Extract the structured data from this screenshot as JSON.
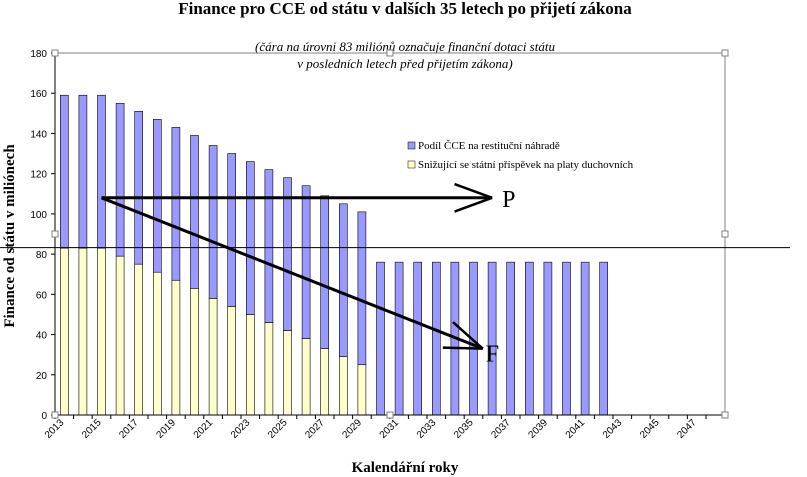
{
  "chart_data": {
    "type": "bar",
    "stacked": true,
    "title": "Finance pro CCE od státu v dalších 35 letech po přijetí zákona",
    "subtitle_lines": [
      "(čára na úrovni 83 miliónů označuje finanční dotaci státu",
      "v posledních letech před přijetím zákona)"
    ],
    "xlabel": "Kalendářní roky",
    "ylabel": "Finance od státu v miliónech",
    "ylim": [
      0,
      180
    ],
    "yticks": [
      0,
      20,
      40,
      60,
      80,
      100,
      120,
      140,
      160,
      180
    ],
    "x_tick_labels": [
      "2013",
      "2015",
      "2017",
      "2019",
      "2021",
      "2023",
      "2025",
      "2027",
      "2029",
      "2031",
      "2033",
      "2035",
      "2037",
      "2039",
      "2041",
      "2043",
      "2045",
      "2047"
    ],
    "categories": [
      2013,
      2014,
      2015,
      2016,
      2017,
      2018,
      2019,
      2020,
      2021,
      2022,
      2023,
      2024,
      2025,
      2026,
      2027,
      2028,
      2029,
      2030,
      2031,
      2032,
      2033,
      2034,
      2035,
      2036,
      2037,
      2038,
      2039,
      2040,
      2041,
      2042,
      2043,
      2044,
      2045,
      2046,
      2047,
      2048
    ],
    "series": [
      {
        "name": "Snižující se státní příspěvek na platy duchovních",
        "color": "#ffffcc",
        "values": [
          83,
          83,
          83,
          79,
          75,
          71,
          67,
          63,
          58,
          54,
          50,
          46,
          42,
          38,
          33,
          29,
          25,
          0,
          0,
          0,
          0,
          0,
          0,
          0,
          0,
          0,
          0,
          0,
          0,
          0,
          0,
          0,
          0,
          0,
          0,
          0
        ]
      },
      {
        "name": "Podíl ČCE na restituční náhradě",
        "color": "#9999ff",
        "values": [
          76,
          76,
          76,
          76,
          76,
          76,
          76,
          76,
          76,
          76,
          76,
          76,
          76,
          76,
          76,
          76,
          76,
          76,
          76,
          76,
          76,
          76,
          76,
          76,
          76,
          76,
          76,
          76,
          76,
          76,
          0,
          0,
          0,
          0,
          0,
          0
        ]
      }
    ],
    "reference_line": 83,
    "grid": false,
    "legend_position": "inside-top-right",
    "annotations": [
      {
        "label": "P",
        "arrow_from": [
          2015,
          108
        ],
        "arrow_to": [
          2036,
          108
        ]
      },
      {
        "label": "F",
        "arrow_from": [
          2015,
          108
        ],
        "arrow_to": [
          2035.5,
          33
        ]
      }
    ]
  }
}
